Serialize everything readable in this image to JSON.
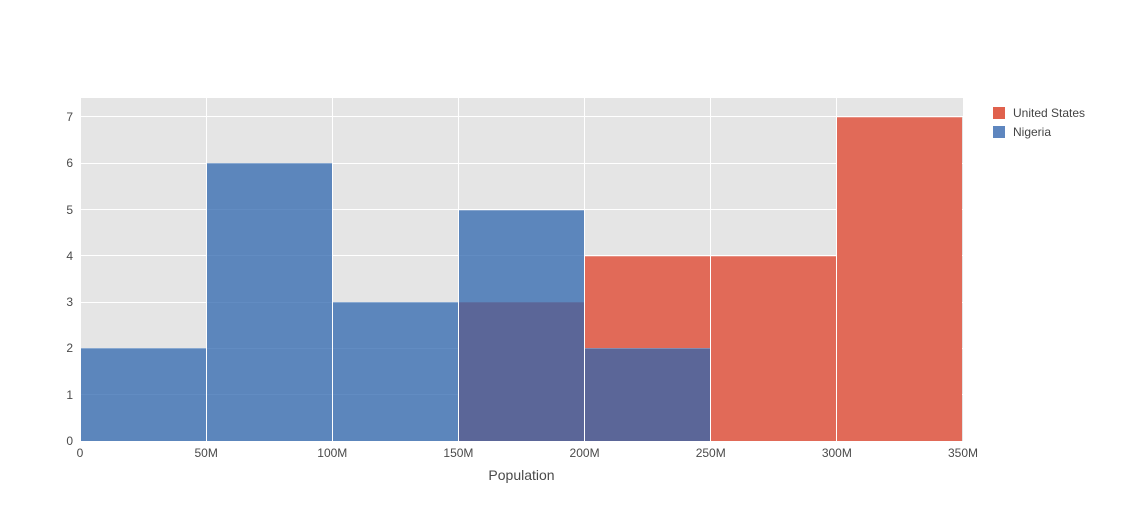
{
  "chart_data": {
    "type": "histogram",
    "barmode": "overlay",
    "title": "",
    "xlabel": "Population",
    "ylabel": "",
    "xlim": [
      0,
      350
    ],
    "ylim": [
      0,
      7.41
    ],
    "x_unit_suffix": "M",
    "grid": true,
    "legend_position": "top-right",
    "plot_bg_color": "#e5e5e5",
    "grid_color": "#ffffff",
    "axis_font_color": "#4a4a4a",
    "bin_width": 50,
    "bin_edges": [
      0,
      50,
      100,
      150,
      200,
      250,
      300,
      350
    ],
    "x_ticks": [
      {
        "v": 0,
        "label": "0"
      },
      {
        "v": 50,
        "label": "50M"
      },
      {
        "v": 100,
        "label": "100M"
      },
      {
        "v": 150,
        "label": "150M"
      },
      {
        "v": 200,
        "label": "200M"
      },
      {
        "v": 250,
        "label": "250M"
      },
      {
        "v": 300,
        "label": "300M"
      },
      {
        "v": 350,
        "label": "350M"
      }
    ],
    "y_ticks": [
      {
        "v": 0,
        "label": "0"
      },
      {
        "v": 1,
        "label": "1"
      },
      {
        "v": 2,
        "label": "2"
      },
      {
        "v": 3,
        "label": "3"
      },
      {
        "v": 4,
        "label": "4"
      },
      {
        "v": 5,
        "label": "5"
      },
      {
        "v": 6,
        "label": "6"
      },
      {
        "v": 7,
        "label": "7"
      }
    ],
    "series": [
      {
        "name": "United States",
        "counts": [
          0,
          0,
          0,
          3,
          4,
          4,
          7
        ],
        "bar_color": "#e16a58",
        "legend_color": "#e0614d"
      },
      {
        "name": "Nigeria",
        "counts": [
          2,
          6,
          3,
          5,
          2,
          0,
          0
        ],
        "bar_color": "rgba(46,101,174,0.75)",
        "legend_color": "#5e86bf"
      }
    ],
    "overlap_color_note": "#5e6ca0"
  }
}
